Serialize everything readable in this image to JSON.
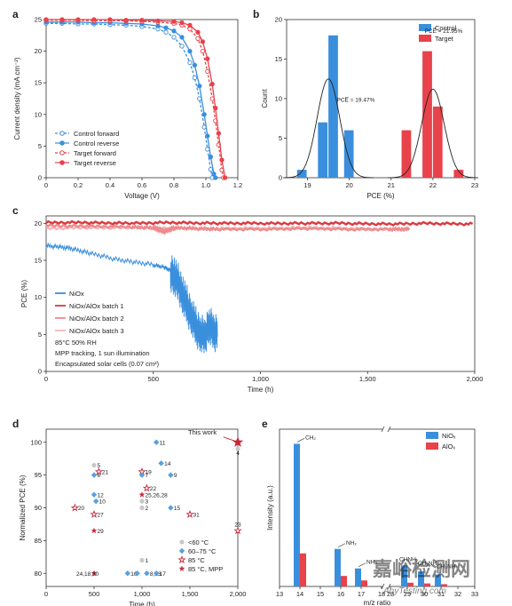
{
  "colors": {
    "control": "#3a8fdd",
    "target": "#e8424a",
    "blue_diamond": "#5aa0dc",
    "gray": "#c8c8c8",
    "red_star": "#c8283a",
    "dark": "#333333",
    "watermark": "#b9c4cf"
  },
  "chart_data": [
    {
      "id": "a",
      "panel_label": "a",
      "type": "line",
      "xlabel": "Voltage (V)",
      "ylabel": "Current density (mA cm⁻²)",
      "xlim": [
        0,
        1.2
      ],
      "ylim": [
        0,
        25
      ],
      "xticks": [
        "0",
        "0.2",
        "0.4",
        "0.6",
        "0.8",
        "1.0",
        "1.2"
      ],
      "yticks": [
        "0",
        "5",
        "10",
        "15",
        "20",
        "25"
      ],
      "series": [
        {
          "name": "Control forward",
          "color": "#3a8fdd",
          "style": "dashed-open",
          "x": [
            0,
            0.1,
            0.2,
            0.3,
            0.4,
            0.5,
            0.6,
            0.7,
            0.75,
            0.8,
            0.85,
            0.9,
            0.93,
            0.96,
            0.99,
            1.01,
            1.03,
            1.04
          ],
          "y": [
            24.4,
            24.4,
            24.3,
            24.3,
            24.2,
            24.1,
            23.9,
            23.5,
            23.0,
            22.2,
            20.8,
            18.2,
            15.8,
            12.5,
            8.0,
            4.5,
            1.3,
            0
          ]
        },
        {
          "name": "Control reverse",
          "color": "#3a8fdd",
          "style": "solid-filled",
          "x": [
            0,
            0.1,
            0.2,
            0.3,
            0.4,
            0.5,
            0.6,
            0.7,
            0.75,
            0.8,
            0.85,
            0.9,
            0.93,
            0.96,
            0.99,
            1.01,
            1.03,
            1.05,
            1.06
          ],
          "y": [
            24.6,
            24.6,
            24.6,
            24.5,
            24.5,
            24.4,
            24.3,
            24.0,
            23.7,
            23.2,
            22.2,
            20.0,
            17.8,
            14.5,
            10.0,
            6.6,
            3.3,
            0.6,
            0
          ]
        },
        {
          "name": "Target forward",
          "color": "#e8424a",
          "style": "dashed-open",
          "x": [
            0,
            0.1,
            0.2,
            0.3,
            0.4,
            0.5,
            0.6,
            0.7,
            0.8,
            0.85,
            0.9,
            0.95,
            0.98,
            1.01,
            1.04,
            1.06,
            1.08,
            1.1,
            1.11
          ],
          "y": [
            24.9,
            24.9,
            24.9,
            24.8,
            24.8,
            24.8,
            24.7,
            24.6,
            24.4,
            24.1,
            23.5,
            22.0,
            20.0,
            16.8,
            12.5,
            9.0,
            5.2,
            1.2,
            0
          ]
        },
        {
          "name": "Target reverse",
          "color": "#e8424a",
          "style": "solid-filled",
          "x": [
            0,
            0.1,
            0.2,
            0.3,
            0.4,
            0.5,
            0.6,
            0.7,
            0.8,
            0.85,
            0.9,
            0.95,
            0.98,
            1.01,
            1.04,
            1.06,
            1.08,
            1.1,
            1.12
          ],
          "y": [
            25.0,
            25.0,
            25.0,
            25.0,
            25.0,
            24.9,
            24.9,
            24.8,
            24.7,
            24.5,
            24.1,
            23.0,
            21.5,
            18.8,
            14.8,
            11.0,
            7.0,
            2.8,
            0
          ]
        }
      ]
    },
    {
      "id": "b",
      "panel_label": "b",
      "type": "bar",
      "xlabel": "PCE (%)",
      "ylabel": "Count",
      "xlim": [
        18.5,
        23
      ],
      "ylim": [
        0,
        20
      ],
      "xticks": [
        "19",
        "20",
        "21",
        "22",
        "23"
      ],
      "yticks": [
        "0",
        "5",
        "10",
        "15",
        "20"
      ],
      "bin_width": 0.25,
      "series": [
        {
          "name": "Control",
          "color": "#3a8fdd",
          "x": [
            18.875,
            19.375,
            19.625,
            20.0
          ],
          "y": [
            1,
            7,
            18,
            6
          ],
          "fit_mean": 19.5,
          "fit_sd": 0.27,
          "fit_peak": 12.5
        },
        {
          "name": "Target",
          "color": "#e8424a",
          "x": [
            21.375,
            21.875,
            22.125,
            22.625
          ],
          "y": [
            6,
            16,
            9,
            1
          ],
          "fit_mean": 22.0,
          "fit_sd": 0.27,
          "fit_peak": 11.2
        }
      ],
      "annotations": [
        {
          "text": "PCE̅ = 19.47%",
          "x": 19.7,
          "y": 9.6
        },
        {
          "text": "PCE̅ = 21.95%",
          "x": 21.8,
          "y": 18.3
        }
      ]
    },
    {
      "id": "c",
      "panel_label": "c",
      "type": "line",
      "xlabel": "Time (h)",
      "ylabel": "PCE (%)",
      "xlim": [
        0,
        2000
      ],
      "ylim": [
        0,
        21
      ],
      "xticks": [
        "0",
        "500",
        "1,000",
        "1,500",
        "2,000"
      ],
      "yticks": [
        "0",
        "5",
        "10",
        "15",
        "20"
      ],
      "series": [
        {
          "name": "NiOx",
          "color": "#3a8fdd",
          "x": [
            0,
            60,
            120,
            200,
            300,
            400,
            500,
            550,
            580,
            600,
            620,
            640,
            660,
            680,
            700,
            720,
            740,
            760,
            780,
            800
          ],
          "y": [
            17.0,
            16.8,
            16.6,
            16.0,
            15.3,
            14.8,
            14.4,
            14.1,
            13.6,
            12.8,
            11.8,
            10.2,
            8.8,
            7.5,
            6.0,
            5.3,
            4.8,
            6.5,
            5.5,
            5.3
          ]
        },
        {
          "name": "NiOx/AlOx batch 1",
          "color": "#d93a40",
          "x": [
            0,
            200,
            400,
            600,
            800,
            1000,
            1200,
            1400,
            1600,
            1800,
            2000
          ],
          "y": [
            20.1,
            20.1,
            20.0,
            20.1,
            20.0,
            20.0,
            20.0,
            20.0,
            19.9,
            20.0,
            19.9
          ]
        },
        {
          "name": "NiOx/AlOx batch 2",
          "color": "#ee8a8d",
          "x": [
            0,
            200,
            400,
            500,
            550,
            600,
            700,
            800,
            1000,
            1200,
            1400,
            1600,
            1700
          ],
          "y": [
            19.7,
            19.6,
            19.5,
            19.4,
            18.9,
            19.4,
            19.3,
            19.2,
            19.2,
            19.3,
            19.2,
            19.2,
            19.2
          ]
        },
        {
          "name": "NiOx/AlOx batch 3",
          "color": "#f4b6b8",
          "x": [
            0,
            200,
            400,
            600,
            800,
            1000,
            1200,
            1400,
            1600,
            1700
          ],
          "y": [
            19.3,
            19.4,
            19.4,
            19.3,
            19.3,
            19.3,
            19.4,
            19.3,
            19.2,
            19.2
          ]
        }
      ],
      "conditions": [
        "85°C     50% RH",
        "MPP tracking, 1 sun illumination",
        "Encapsulated solar cells (0.07 cm²)"
      ]
    },
    {
      "id": "d",
      "panel_label": "d",
      "type": "scatter",
      "xlabel": "Time (h)",
      "ylabel": "Normalized PCE (%)",
      "xlim": [
        0,
        2000
      ],
      "ylim": [
        78,
        102
      ],
      "xticks": [
        "0",
        "500",
        "1,000",
        "1,500",
        "2,000"
      ],
      "yticks": [
        "80",
        "85",
        "90",
        "95",
        "100"
      ],
      "legend": [
        {
          "label": "<60 °C",
          "marker": "circle",
          "color": "#c8c8c8"
        },
        {
          "label": "60–75 °C",
          "marker": "diamond",
          "color": "#5aa0dc"
        },
        {
          "label": "85 °C",
          "marker": "star-open",
          "color": "#c8283a"
        },
        {
          "label": "85 °C, MPP",
          "marker": "star",
          "color": "#c8283a"
        }
      ],
      "points": [
        {
          "x": 500,
          "y": 96.5,
          "marker": "circle",
          "label": "5"
        },
        {
          "x": 550,
          "y": 95.5,
          "marker": "star-open",
          "label": "21"
        },
        {
          "x": 500,
          "y": 95.0,
          "marker": "diamond",
          "label": "6"
        },
        {
          "x": 500,
          "y": 92.0,
          "marker": "diamond",
          "label": "12"
        },
        {
          "x": 520,
          "y": 91.0,
          "marker": "diamond",
          "label": "10"
        },
        {
          "x": 300,
          "y": 90.0,
          "marker": "star-open",
          "label": "20"
        },
        {
          "x": 500,
          "y": 89.0,
          "marker": "star-open",
          "label": "27"
        },
        {
          "x": 500,
          "y": 86.5,
          "marker": "star",
          "label": "29"
        },
        {
          "x": 500,
          "y": 80.0,
          "marker": "star",
          "label": "24,18,30"
        },
        {
          "x": 1000,
          "y": 95.5,
          "marker": "star-open",
          "label": "19"
        },
        {
          "x": 1000,
          "y": 95.0,
          "marker": "diamond",
          "label": "7"
        },
        {
          "x": 1200,
          "y": 96.8,
          "marker": "diamond",
          "label": "14"
        },
        {
          "x": 1300,
          "y": 95.0,
          "marker": "diamond",
          "label": "9"
        },
        {
          "x": 1050,
          "y": 93.0,
          "marker": "star-open",
          "label": "22"
        },
        {
          "x": 1000,
          "y": 92.0,
          "marker": "star",
          "label": "25,26,28"
        },
        {
          "x": 1000,
          "y": 91.0,
          "marker": "circle",
          "label": "3"
        },
        {
          "x": 1000,
          "y": 90.0,
          "marker": "circle",
          "label": "2"
        },
        {
          "x": 1300,
          "y": 90.0,
          "marker": "diamond",
          "label": "15"
        },
        {
          "x": 1500,
          "y": 89.0,
          "marker": "star-open",
          "label": "31"
        },
        {
          "x": 1000,
          "y": 82.0,
          "marker": "circle",
          "label": "1"
        },
        {
          "x": 850,
          "y": 80.0,
          "marker": "diamond",
          "label": "16"
        },
        {
          "x": 950,
          "y": 80.0,
          "marker": "diamond",
          "label": ""
        },
        {
          "x": 1050,
          "y": 80.0,
          "marker": "diamond",
          "label": "8,13"
        },
        {
          "x": 1150,
          "y": 80.0,
          "marker": "diamond",
          "label": "17"
        },
        {
          "x": 1150,
          "y": 100.0,
          "marker": "diamond",
          "label": "11"
        },
        {
          "x": 2000,
          "y": 99.0,
          "marker": "circle",
          "label": "4"
        },
        {
          "x": 2000,
          "y": 86.5,
          "marker": "star-open",
          "label": "23"
        },
        {
          "x": 2000,
          "y": 100.0,
          "marker": "star-big",
          "label": "This work"
        }
      ]
    },
    {
      "id": "e",
      "panel_label": "e",
      "type": "bar",
      "xlabel": "m/z ratio",
      "ylabel": "Intensity (a.u.)",
      "xticks": [
        "13",
        "14",
        "15",
        "16",
        "17",
        "18",
        "28",
        "29",
        "30",
        "31",
        "32",
        "33"
      ],
      "legend": [
        "NiOₓ",
        "AlOₓ"
      ],
      "series": [
        {
          "name": "NiOx",
          "color": "#3a8fdd",
          "x": [
            14,
            16,
            17,
            29,
            30,
            31
          ],
          "y": [
            0.95,
            0.25,
            0.12,
            0.14,
            0.1,
            0.08
          ]
        },
        {
          "name": "AlOx",
          "color": "#e8424a",
          "x": [
            14,
            16,
            17,
            29,
            30,
            31
          ],
          "y": [
            0.22,
            0.07,
            0.04,
            0.025,
            0.02,
            0.015
          ]
        }
      ],
      "annotations": [
        {
          "text": "CH₂",
          "x": 14,
          "y": 0.95
        },
        {
          "text": "NH₂",
          "x": 16,
          "y": 0.25
        },
        {
          "text": "NH₃",
          "x": 17,
          "y": 0.12
        },
        {
          "text": "CHNH₂",
          "x": 29,
          "y": 0.14
        },
        {
          "text": "CH₂NH₂",
          "x": 30,
          "y": 0.1
        },
        {
          "text": "CH₃NH",
          "x": 31,
          "y": 0.08
        }
      ]
    }
  ],
  "watermark": {
    "main": "嘉峪检测网",
    "sub": "AnyTesting.com"
  }
}
